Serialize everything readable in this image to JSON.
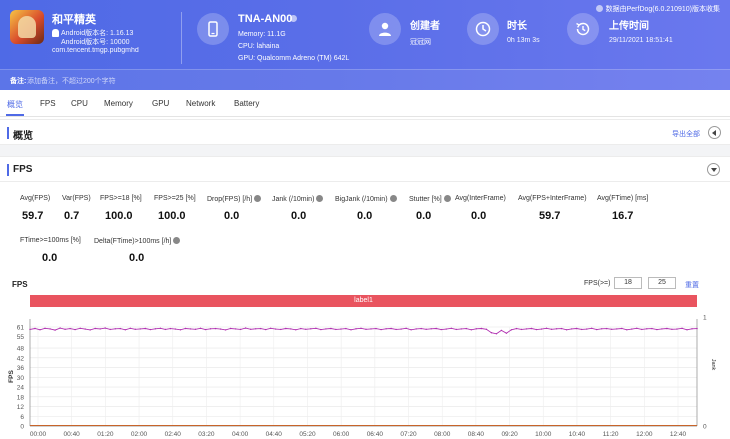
{
  "app": {
    "name": "和平精英",
    "android_version": "Android版本名: 1.16.13",
    "version_code": "Android版本号: 10000",
    "package": "com.tencent.tmgp.pubgmhd",
    "icon": "game-app-icon"
  },
  "device": {
    "name": "TNA-AN00",
    "memory": "Memory: 11.1G",
    "cpu": "CPU: lahaina",
    "gpu": "GPU: Qualcomm Adreno (TM) 642L",
    "icon": "phone-icon"
  },
  "creator": {
    "label": "创建者",
    "value": "冠冠网",
    "icon": "user-icon"
  },
  "duration": {
    "label": "时长",
    "value": "0h 13m 3s",
    "icon": "clock-icon"
  },
  "upload": {
    "label": "上传时间",
    "value": "29/11/2021 18:51:41",
    "icon": "history-icon"
  },
  "source_note": "数据由PerfDog(6.0.210910)版本收集",
  "note": {
    "label": "备注:",
    "placeholder": "添加备注，不超过200个字符"
  },
  "tabs": [
    {
      "label": "概览",
      "active": true
    },
    {
      "label": "FPS"
    },
    {
      "label": "CPU"
    },
    {
      "label": "Memory"
    },
    {
      "label": "GPU"
    },
    {
      "label": "Network"
    },
    {
      "label": "Battery"
    }
  ],
  "overview": {
    "title": "概览",
    "export": "导出全部"
  },
  "fps_section": {
    "title": "FPS",
    "metrics": [
      {
        "label": "Avg(FPS)",
        "value": "59.7"
      },
      {
        "label": "Var(FPS)",
        "value": "0.7"
      },
      {
        "label": "FPS>=18 [%]",
        "value": "100.0"
      },
      {
        "label": "FPS>=25 [%]",
        "value": "100.0"
      },
      {
        "label": "Drop(FPS) [/h]",
        "value": "0.0"
      },
      {
        "label": "Jank (/10min)",
        "value": "0.0"
      },
      {
        "label": "BigJank (/10min)",
        "value": "0.0"
      },
      {
        "label": "Stutter [%]",
        "value": "0.0"
      },
      {
        "label": "Avg(InterFrame)",
        "value": "0.0"
      },
      {
        "label": "Avg(FPS+InterFrame)",
        "value": "59.7"
      },
      {
        "label": "Avg(FTime) [ms]",
        "value": "16.7"
      },
      {
        "label": "FTime>=100ms [%]",
        "value": "0.0"
      },
      {
        "label": "Delta(FTime)>100ms [/h]",
        "value": "0.0"
      }
    ]
  },
  "chart_controls": {
    "title": "FPS",
    "threshold_label": "FPS(>=)",
    "threshold_1": "18",
    "threshold_2": "25",
    "reset": "重置"
  },
  "chart_data": {
    "type": "line",
    "band_label": "label1",
    "ylabel": "FPS",
    "y2label": "Jank",
    "yticks": [
      0,
      6,
      12,
      18,
      24,
      30,
      36,
      42,
      48,
      55,
      61
    ],
    "ylim": [
      0,
      61
    ],
    "y2ticks": [
      0,
      1
    ],
    "y2lim": [
      0,
      1
    ],
    "xticks": [
      "00:00",
      "00:40",
      "01:20",
      "02:00",
      "02:40",
      "03:20",
      "04:00",
      "04:40",
      "05:20",
      "06:00",
      "06:40",
      "07:20",
      "08:00",
      "08:40",
      "09:20",
      "10:00",
      "10:40",
      "11:20",
      "12:00",
      "12:40"
    ],
    "xlim_seconds": [
      0,
      783
    ],
    "grid": true,
    "series": [
      {
        "name": "FPS",
        "color": "#b02fb0",
        "values": [
          59.5,
          60.1,
          59.3,
          60.2,
          59.8,
          59.1,
          60.3,
          59.6,
          60.0,
          59.4,
          60.2,
          59.7,
          59.2,
          60.1,
          59.8,
          60.3,
          59.5,
          59.9,
          60.0,
          59.3,
          60.2,
          59.6,
          59.8,
          60.1,
          59.4,
          59.9,
          60.2,
          59.5,
          60.0,
          59.7,
          59.3,
          60.1,
          59.8,
          59.6,
          60.2,
          59.4,
          59.9,
          60.0,
          59.7,
          59.2,
          60.1,
          59.8,
          59.5,
          60.3,
          59.6,
          59.9,
          60.0,
          59.4,
          60.2,
          59.7,
          59.5,
          60.1,
          59.8,
          59.3,
          60.0,
          59.6,
          59.9,
          60.2,
          59.4,
          59.8,
          60.1,
          59.5,
          59.7,
          60.0,
          59.3,
          59.9,
          60.2,
          59.6,
          59.8,
          60.0,
          59.4,
          59.9,
          60.1,
          59.5,
          59.7,
          60.2,
          59.3,
          59.8,
          60.0,
          59.6,
          59.9,
          60.1,
          59.4,
          59.7,
          60.2,
          59.5,
          59.8,
          60.0,
          59.3,
          59.9,
          60.1,
          59.6,
          57.5,
          56.8,
          58.9,
          57.2,
          59.3,
          60.0,
          59.5,
          59.8,
          60.1,
          59.4,
          59.7,
          60.2,
          59.6,
          59.9,
          60.0,
          59.3,
          59.8,
          60.1,
          59.5,
          59.7,
          60.2,
          59.4,
          59.9,
          60.0,
          59.6,
          59.8,
          60.1,
          59.3,
          59.7,
          60.2,
          59.5,
          59.9,
          60.0,
          59.4,
          59.8,
          60.1,
          59.6,
          59.7,
          60.2,
          59.3,
          59.9,
          60.0
        ]
      },
      {
        "name": "Jank",
        "color": "#c8642a",
        "values": [
          0
        ]
      }
    ]
  }
}
